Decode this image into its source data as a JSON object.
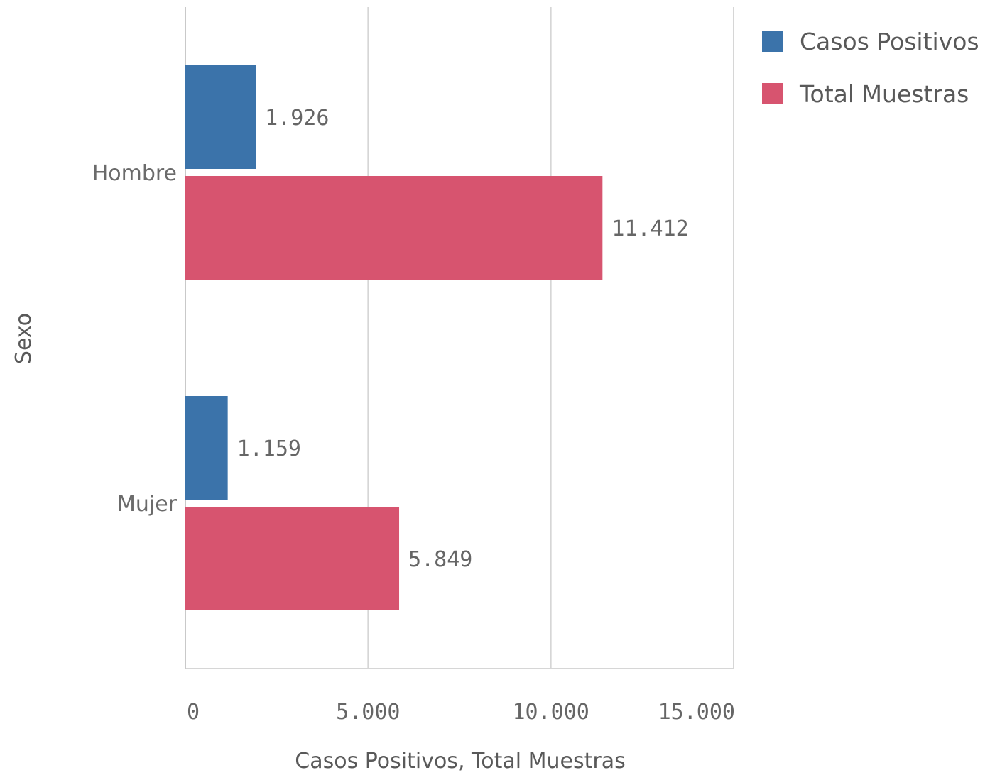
{
  "chart_data": {
    "type": "bar",
    "orientation": "horizontal",
    "categories": [
      "Hombre",
      "Mujer"
    ],
    "series": [
      {
        "name": "Casos Positivos",
        "values": [
          1926,
          1159
        ],
        "value_labels": [
          "1.926",
          "1.159"
        ],
        "color": "#3b73aa"
      },
      {
        "name": "Total Muestras",
        "values": [
          11412,
          5849
        ],
        "value_labels": [
          "11.412",
          "5.849"
        ],
        "color": "#d7546f"
      }
    ],
    "xlabel": "Casos Positivos,  Total Muestras",
    "ylabel": "Sexo",
    "xlim": [
      0,
      15000
    ],
    "xticks": [
      0,
      5000,
      10000,
      15000
    ],
    "xtick_labels": [
      "0",
      "5.000",
      "10.000",
      "15.000"
    ],
    "grid": "vertical",
    "legend_position": "top-right"
  }
}
